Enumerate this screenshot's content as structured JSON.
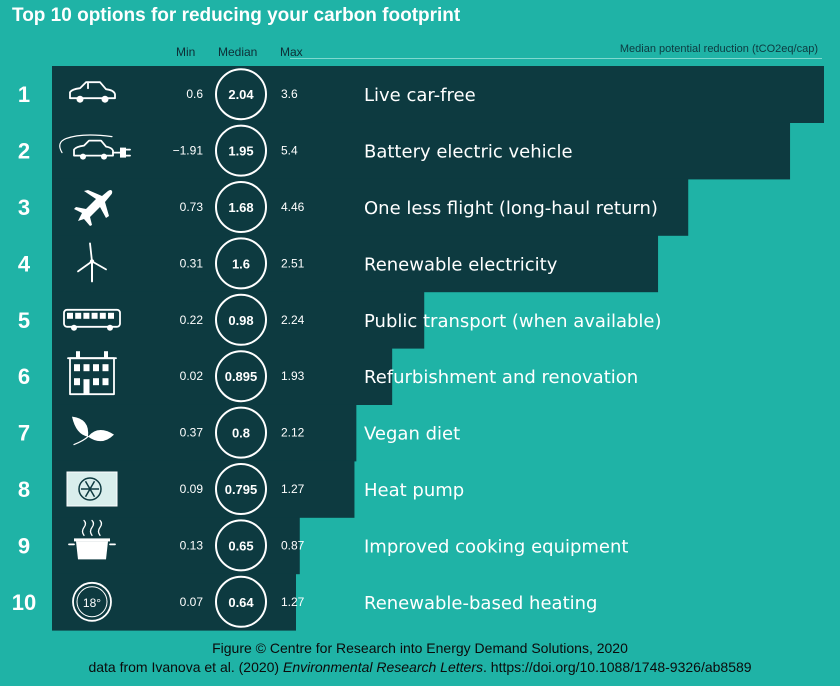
{
  "title": "Top 10 options for reducing your carbon footprint",
  "headers": {
    "min": "Min",
    "median": "Median",
    "max": "Max"
  },
  "unit_label": "Median potential reduction (tCO2eq/cap)",
  "caption_line1": "Figure © Centre for Research into Energy Demand Solutions, 2020",
  "caption_line2_prefix": "data from Ivanova et al. (2020) ",
  "caption_line2_journal": "Environmental Research Letters",
  "caption_line2_suffix": ". https://doi.org/10.1088/1748-9326/ab8589",
  "colors": {
    "background": "#1fb3a6",
    "bar": "#0d3a40",
    "text": "#ffffff"
  },
  "chart_data": {
    "type": "bar",
    "orientation": "horizontal",
    "categories": [
      "Live car-free",
      "Battery electric vehicle",
      "One less flight (long-haul return)",
      "Renewable electricity",
      "Public transport (when available)",
      "Refurbishment and renovation",
      "Vegan diet",
      "Heat pump",
      "Improved cooking equipment",
      "Renewable-based heating"
    ],
    "ranks": [
      "1",
      "2",
      "3",
      "4",
      "5",
      "6",
      "7",
      "8",
      "9",
      "10"
    ],
    "icons": [
      "car-icon",
      "electric-car-plug-icon",
      "airplane-icon",
      "wind-turbine-icon",
      "bus-icon",
      "house-icon",
      "leaf-icon",
      "heat-pump-icon",
      "cooking-pot-icon",
      "thermostat-icon"
    ],
    "thermostat_icon_text": "18°",
    "series": [
      {
        "name": "Median",
        "values": [
          2.04,
          1.95,
          1.68,
          1.6,
          0.98,
          0.895,
          0.8,
          0.795,
          0.65,
          0.64
        ]
      }
    ],
    "min_labels": [
      "0.6",
      "−1.91",
      "0.73",
      "0.31",
      "0.22",
      "0.02",
      "0.37",
      "0.09",
      "0.13",
      "0.07"
    ],
    "median_labels": [
      "2.04",
      "1.95",
      "1.68",
      "1.6",
      "0.98",
      "0.895",
      "0.8",
      "0.795",
      "0.65",
      "0.64"
    ],
    "max_labels": [
      "3.6",
      "5.4",
      "4.46",
      "2.51",
      "2.24",
      "1.93",
      "2.12",
      "1.27",
      "0.87",
      "1.27"
    ],
    "xlim": [
      0,
      2.04
    ],
    "grid": false,
    "legend": "none"
  }
}
